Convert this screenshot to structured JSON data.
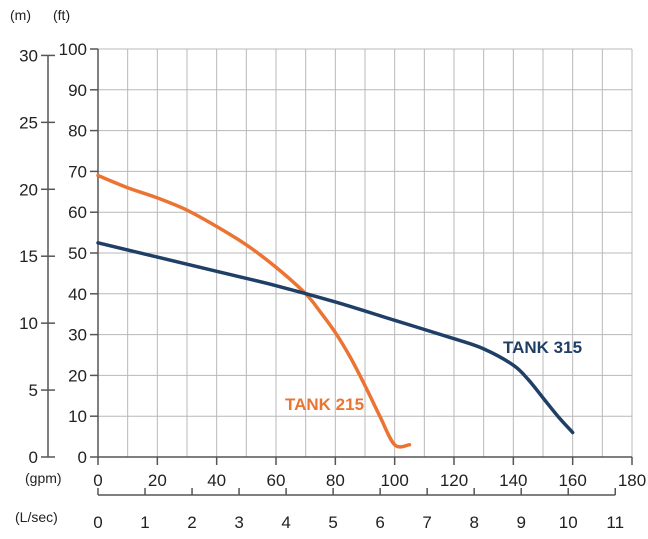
{
  "chart_data": {
    "type": "line",
    "title": "",
    "units": {
      "m": "(m)",
      "ft": "(ft)",
      "gpm": "(gpm)",
      "lsec": "(L/sec)"
    },
    "axes": {
      "x_gpm": {
        "min": 0,
        "max": 180,
        "ticks": [
          "0",
          "20",
          "40",
          "60",
          "80",
          "100",
          "120",
          "140",
          "160",
          "180"
        ]
      },
      "x_lsec": {
        "ticks": [
          "0",
          "1",
          "2",
          "3",
          "4",
          "5",
          "6",
          "7",
          "8",
          "9",
          "10",
          "11"
        ]
      },
      "y_ft": {
        "min": 0,
        "max": 100,
        "ticks": [
          "0",
          "10",
          "20",
          "30",
          "40",
          "50",
          "60",
          "70",
          "80",
          "90",
          "100"
        ]
      },
      "y_m": {
        "ticks": [
          "0",
          "5",
          "10",
          "15",
          "20",
          "25",
          "30"
        ]
      }
    },
    "grid": true,
    "series": [
      {
        "name": "TANK 215",
        "color": "#ec7433",
        "points": [
          [
            0,
            69
          ],
          [
            10,
            66
          ],
          [
            20,
            63.5
          ],
          [
            30,
            60.5
          ],
          [
            40,
            56.5
          ],
          [
            50,
            52
          ],
          [
            60,
            46.5
          ],
          [
            70,
            40
          ],
          [
            75,
            35.5
          ],
          [
            80,
            30.5
          ],
          [
            85,
            24.5
          ],
          [
            90,
            17.5
          ],
          [
            95,
            10
          ],
          [
            100,
            3
          ],
          [
            105,
            3
          ]
        ]
      },
      {
        "name": "TANK 315",
        "color": "#1f3f66",
        "points": [
          [
            0,
            52.5
          ],
          [
            20,
            49
          ],
          [
            40,
            45.5
          ],
          [
            60,
            42
          ],
          [
            80,
            38
          ],
          [
            100,
            33.5
          ],
          [
            120,
            29
          ],
          [
            130,
            26.5
          ],
          [
            140,
            22.5
          ],
          [
            145,
            19
          ],
          [
            150,
            14.5
          ],
          [
            155,
            10
          ],
          [
            160,
            6
          ]
        ]
      }
    ]
  }
}
